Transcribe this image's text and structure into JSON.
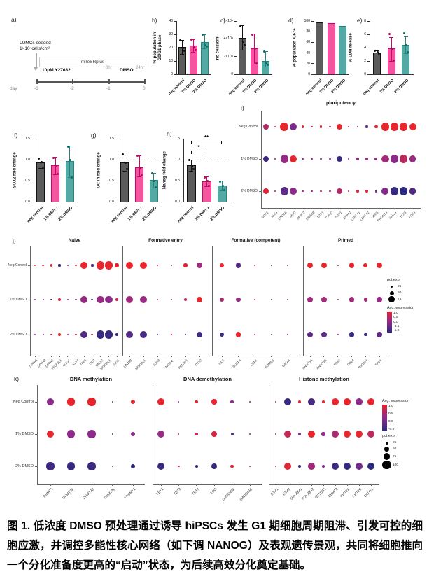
{
  "colors": {
    "neg_fill": "#5b5b5b",
    "neg_stroke": "#111111",
    "neg_point": "#111111",
    "dmso1_fill": "#f4559f",
    "dmso1_stroke": "#d4006e",
    "dmso1_point": "#b50d60",
    "dmso2_fill": "#54a9a4",
    "dmso2_stroke": "#23837d",
    "dmso2_point": "#0e6e68",
    "dot_high": "#e6252d",
    "dot_mid": "#8e2a8c",
    "dot_low": "#2b2a7e"
  },
  "panels": {
    "a": {
      "label": "a)",
      "seeded_line1": "LUMCs seeded",
      "seeded_line2": "1×10⁴cells/cm²",
      "media": "mTeSRplus",
      "treatment1": "10μM Y27632",
      "t0": "0hr",
      "treatment2": "DMSO",
      "t24": "24hr",
      "day_label": "day",
      "day_ticks": [
        "-3",
        "-2",
        "-1",
        "0"
      ]
    },
    "i": {
      "label": "i)"
    },
    "j": {
      "label": "j)"
    },
    "k": {
      "label": "k)"
    }
  },
  "chart_data": [
    {
      "id": "b",
      "panel_label": "b)",
      "type": "bar",
      "ylabel_lines": [
        "% population in",
        "G0/G1 phase"
      ],
      "ylim": [
        0,
        40
      ],
      "yticks": [
        0,
        10,
        20,
        30,
        40
      ],
      "ytick_labels": [
        "0",
        "10",
        "20",
        "30",
        "40"
      ],
      "categories": [
        "neg control",
        "1% DMSO",
        "2% DMSO"
      ],
      "values": [
        20.3,
        21.6,
        24.4
      ],
      "err_low": [
        15.5,
        17,
        19.5
      ],
      "err_high": [
        26,
        26.5,
        30
      ],
      "points": [
        [
          25.5,
          19.5,
          17.5
        ],
        [
          26,
          20.5,
          18
        ],
        [
          29.7,
          22,
          21
        ]
      ]
    },
    {
      "id": "c",
      "panel_label": "c)",
      "type": "bar",
      "ylabel_lines": [
        "no cells/cm²"
      ],
      "ylim": [
        0,
        60000
      ],
      "yticks": [
        0,
        20000,
        40000,
        60000
      ],
      "ytick_labels": [
        "0",
        "2×10⁴",
        "4×10⁴",
        "6×10⁴"
      ],
      "categories": [
        "neg control",
        "1% DMSO",
        "2% DMSO"
      ],
      "values": [
        41000,
        29000,
        15000
      ],
      "err_low": [
        28000,
        12000,
        9000
      ],
      "err_high": [
        55000,
        46000,
        26000
      ],
      "points": [
        [
          54000,
          36000,
          33000
        ],
        [
          45000,
          29000,
          12500
        ],
        [
          25500,
          12500,
          10500
        ]
      ]
    },
    {
      "id": "d",
      "panel_label": "d)",
      "type": "bar",
      "ylabel_lines": [
        "% population Ki67+"
      ],
      "ylim": [
        0,
        100
      ],
      "yticks": [
        0,
        20,
        40,
        60,
        80,
        100
      ],
      "ytick_labels": [
        "0",
        "20",
        "40",
        "60",
        "80",
        "100"
      ],
      "categories": [
        "neg control",
        "1% DMSO",
        "2% DMSO"
      ],
      "values": [
        97,
        96.5,
        91
      ]
    },
    {
      "id": "e",
      "panel_label": "e)",
      "type": "bar",
      "ylabel_lines": [
        "% LDH release"
      ],
      "ylim": [
        0,
        8
      ],
      "yticks": [
        0,
        2,
        4,
        6,
        8
      ],
      "ytick_labels": [
        "0",
        "2",
        "4",
        "6",
        "8"
      ],
      "categories": [
        "neg control",
        "1% DMSO",
        "2% DMSO"
      ],
      "values": [
        3.3,
        3.85,
        4.4
      ],
      "err_low": [
        3.0,
        2.0,
        3.2
      ],
      "err_high": [
        3.6,
        5.6,
        5.7
      ],
      "points": [
        [
          3.5,
          3.3,
          3.15
        ],
        [
          6.1,
          3.7,
          2.1
        ],
        [
          6.2,
          4.35,
          3.3
        ]
      ]
    },
    {
      "id": "f",
      "panel_label": "f)",
      "type": "bar",
      "ylabel_lines": [
        "SOX2 fold change"
      ],
      "ylim": [
        0,
        1.5
      ],
      "yticks": [
        0,
        0.5,
        1.0,
        1.5
      ],
      "ytick_labels": [
        "0.0",
        "0.5",
        "1.0",
        "1.5"
      ],
      "ref_line": 1.0,
      "categories": [
        "neg control",
        "1% DMSO",
        "2% DMSO"
      ],
      "values": [
        0.93,
        0.86,
        0.96
      ],
      "err_low": [
        0.8,
        0.65,
        0.58
      ],
      "err_high": [
        1.05,
        1.06,
        1.33
      ],
      "points": [
        [
          1.02,
          0.95,
          0.8
        ],
        [
          1.05,
          0.86,
          0.66
        ],
        [
          1.31,
          1.0,
          0.58
        ]
      ]
    },
    {
      "id": "g",
      "panel_label": "g)",
      "type": "bar",
      "ylabel_lines": [
        "OCT4 fold change"
      ],
      "ylim": [
        0,
        1.5
      ],
      "yticks": [
        0,
        0.5,
        1.0,
        1.5
      ],
      "ytick_labels": [
        "0.0",
        "0.5",
        "1.0",
        "1.5"
      ],
      "ref_line": 1.0,
      "categories": [
        "neg control",
        "1% DMSO",
        "2% DMSO"
      ],
      "values": [
        0.93,
        0.82,
        0.51
      ],
      "err_low": [
        0.74,
        0.6,
        0.33
      ],
      "err_high": [
        1.12,
        1.1,
        0.69
      ],
      "points": [
        [
          1.12,
          0.93,
          0.78
        ],
        [
          1.09,
          0.8,
          0.62
        ],
        [
          0.68,
          0.5,
          0.34
        ]
      ]
    },
    {
      "id": "h",
      "panel_label": "h)",
      "type": "bar",
      "ylabel_lines": [
        "Nanog fold change"
      ],
      "ylim": [
        0,
        1.5
      ],
      "yticks": [
        0,
        0.5,
        1.0,
        1.5
      ],
      "ytick_labels": [
        "0.0",
        "0.5",
        "1.0",
        "1.5"
      ],
      "ref_line": 1.0,
      "categories": [
        "neg control",
        "1% DMSO",
        "2% DMSO"
      ],
      "values": [
        0.87,
        0.49,
        0.38
      ],
      "err_low": [
        0.74,
        0.37,
        0.27
      ],
      "err_high": [
        1.0,
        0.6,
        0.5
      ],
      "points": [
        [
          1.0,
          0.85,
          0.77
        ],
        [
          0.57,
          0.5,
          0.37
        ],
        [
          0.48,
          0.38,
          0.28
        ]
      ],
      "significance": [
        {
          "pair": [
            0,
            1
          ],
          "y": 1.22,
          "label": "*"
        },
        {
          "pair": [
            0,
            2
          ],
          "y": 1.45,
          "label": "**"
        }
      ]
    },
    {
      "id": "i",
      "type": "dotplot",
      "title": "pluripotency",
      "rows": [
        "Neg Control",
        "1% DMSO",
        "2% DMSO"
      ],
      "genes": [
        "SOX2",
        "KLF4",
        "LIN28A",
        "MYC",
        "DPPA2",
        "ESRRB",
        "UTF1",
        "CHAD",
        "SPP1",
        "ZFP42",
        "LEFTY1",
        "LEFTY2",
        "GDF3",
        "PRDM14",
        "SALL4",
        "TCF3",
        "FGF4"
      ],
      "pct": [
        [
          60,
          8,
          85,
          70,
          18,
          8,
          15,
          8,
          55,
          8,
          12,
          15,
          28,
          80,
          85,
          80,
          70
        ],
        [
          60,
          8,
          80,
          70,
          12,
          8,
          12,
          8,
          55,
          8,
          15,
          18,
          22,
          75,
          80,
          80,
          65
        ],
        [
          60,
          8,
          80,
          70,
          12,
          8,
          12,
          8,
          55,
          8,
          15,
          18,
          15,
          70,
          80,
          80,
          65
        ]
      ],
      "avg": [
        [
          0.4,
          0.8,
          1,
          -0.2,
          1,
          0.5,
          1,
          0.3,
          1,
          0.5,
          -0.6,
          -0.4,
          1,
          1,
          1,
          1,
          1
        ],
        [
          -0.8,
          0,
          0.1,
          1,
          0,
          0,
          -0.2,
          0,
          -0.9,
          0,
          0.1,
          0.2,
          0.1,
          0.2,
          0,
          0.5,
          0.1
        ],
        [
          0.9,
          0.3,
          -0.5,
          0,
          0.2,
          0.2,
          0.3,
          0.2,
          0.4,
          0.3,
          0.9,
          0.9,
          -0.3,
          -0.1,
          -0.9,
          -1,
          -0.6
        ]
      ]
    },
    {
      "id": "j-naive",
      "type": "dotplot",
      "title": "Naive",
      "rows": [
        "Neg Control",
        "1% DMSO",
        "2% DMSO"
      ],
      "genes": [
        "DPPA5",
        "DPPA3",
        "DPPA2",
        "TFCP2L1",
        "KLF17",
        "KLF4",
        "TFE3",
        "ZIC2",
        "SALL2",
        "ST6GAL1",
        "FUT1"
      ],
      "pct": [
        [
          8,
          8,
          15,
          15,
          5,
          8,
          75,
          15,
          80,
          80,
          30
        ],
        [
          5,
          5,
          12,
          20,
          5,
          5,
          70,
          12,
          75,
          75,
          25
        ],
        [
          5,
          5,
          12,
          22,
          5,
          8,
          70,
          12,
          80,
          80,
          18
        ]
      ],
      "avg": [
        [
          1,
          1,
          1,
          -0.8,
          0,
          1,
          1,
          -0.7,
          1,
          1,
          1
        ],
        [
          0,
          0,
          -0.7,
          0.9,
          0,
          0,
          0.1,
          -0.8,
          0.1,
          0,
          0.8
        ],
        [
          0,
          0,
          0.9,
          1,
          0,
          0.9,
          -0.6,
          0.9,
          -0.9,
          -0.9,
          -1
        ]
      ]
    },
    {
      "id": "j-formative-entry",
      "type": "dotplot",
      "title": "Formative entry",
      "rows": [
        "Neg Control",
        "1% DMSO",
        "2% DMSO"
      ],
      "genes": [
        "LIN28B",
        "ST6GAL1",
        "SOX3",
        "NODAL",
        "POU3F1",
        "OTX2"
      ],
      "pct": [
        [
          75,
          75,
          12,
          5,
          30,
          55
        ],
        [
          70,
          70,
          10,
          5,
          28,
          60
        ],
        [
          70,
          70,
          8,
          12,
          10,
          55
        ]
      ],
      "avg": [
        [
          1,
          1,
          0.9,
          0,
          0.9,
          0.2
        ],
        [
          0.2,
          0.1,
          0.8,
          0,
          0.5,
          1
        ],
        [
          -0.6,
          -0.7,
          -0.5,
          0.9,
          -0.9,
          -0.8
        ]
      ]
    },
    {
      "id": "j-formative-competent",
      "type": "dotplot",
      "title": "Formative (competent)",
      "rows": [
        "Neg Control",
        "1% DMSO",
        "2% DMSO"
      ],
      "genes": [
        "ZIC2",
        "DUSP6",
        "CER1",
        "EOMES",
        "GATA6"
      ],
      "pct": [
        [
          45,
          50,
          5,
          4,
          4
        ],
        [
          40,
          45,
          6,
          4,
          4
        ],
        [
          40,
          50,
          8,
          4,
          4
        ]
      ],
      "avg": [
        [
          1,
          -0.6,
          0.5,
          0,
          0
        ],
        [
          0.3,
          0.1,
          1,
          0,
          0
        ],
        [
          -0.9,
          1,
          1,
          0,
          0
        ]
      ]
    },
    {
      "id": "j-primed",
      "type": "dotplot",
      "title": "Primed",
      "rows": [
        "Neg Control",
        "1% DMSO",
        "2% DMSO"
      ],
      "genes": [
        "DNMT3A",
        "DNMT3B",
        "FGF2",
        "CD24",
        "B3GAT1",
        "THY1"
      ],
      "pct": [
        [
          55,
          55,
          4,
          50,
          35,
          55
        ],
        [
          52,
          52,
          4,
          50,
          32,
          52
        ],
        [
          52,
          52,
          4,
          50,
          28,
          52
        ]
      ],
      "avg": [
        [
          1,
          1,
          0,
          1,
          1,
          1
        ],
        [
          0.2,
          0.2,
          0,
          0.2,
          0.3,
          0.1
        ],
        [
          -0.5,
          -0.5,
          0,
          -0.9,
          -0.8,
          -0.5
        ]
      ]
    },
    {
      "id": "k-dna-methylation",
      "type": "dotplot",
      "title": "DNA methylation",
      "rows": [
        "Neg Control",
        "1% DMSO",
        "2% DMSO"
      ],
      "genes": [
        "DNMT1",
        "DNMT3A",
        "DNMT3B",
        "DNMT3L",
        "TRDMT1"
      ],
      "pct": [
        [
          75,
          80,
          80,
          4,
          45
        ],
        [
          75,
          80,
          80,
          4,
          42
        ],
        [
          80,
          82,
          82,
          4,
          35
        ]
      ],
      "avg": [
        [
          0,
          1,
          1,
          0,
          1
        ],
        [
          1,
          0,
          0,
          0,
          0
        ],
        [
          -0.8,
          -0.9,
          -0.8,
          0,
          -1
        ]
      ]
    },
    {
      "id": "k-dna-demethylation",
      "type": "dotplot",
      "title": "DNA demethylation",
      "rows": [
        "Neg Control",
        "1% DMSO",
        "2% DMSO"
      ],
      "genes": [
        "TET1",
        "TET2",
        "TET3",
        "TDG",
        "GADD45A",
        "GADD45B"
      ],
      "pct": [
        [
          75,
          5,
          28,
          55,
          28,
          5
        ],
        [
          70,
          5,
          28,
          55,
          22,
          5
        ],
        [
          72,
          8,
          25,
          55,
          25,
          5
        ]
      ],
      "avg": [
        [
          1,
          0,
          0.9,
          1,
          0,
          0
        ],
        [
          0.1,
          0.5,
          0.6,
          0.8,
          -0.7,
          0
        ],
        [
          -0.9,
          0.9,
          -0.9,
          -0.9,
          0.9,
          0.3
        ]
      ]
    },
    {
      "id": "k-histone-methylation",
      "type": "dotplot",
      "title": "Histone methylation",
      "rows": [
        "Neg Control",
        "1% DMSO",
        "2% DMSO"
      ],
      "genes": [
        "EZH1",
        "EZH2",
        "SUV39H1",
        "SUV39H2",
        "SETDB1",
        "EHMT2",
        "KMT2A",
        "KMT2B",
        "DOT1L"
      ],
      "pct": [
        [
          5,
          75,
          22,
          70,
          28,
          75,
          72,
          70,
          72
        ],
        [
          5,
          72,
          25,
          70,
          30,
          75,
          72,
          70,
          72
        ],
        [
          6,
          72,
          20,
          68,
          28,
          78,
          75,
          70,
          72
        ]
      ],
      "avg": [
        [
          0,
          -0.9,
          1,
          -0.7,
          1,
          1,
          1,
          0,
          1
        ],
        [
          0,
          0.6,
          0,
          1,
          0,
          0.3,
          1,
          1,
          0.5
        ],
        [
          0.5,
          0.9,
          -0.8,
          0.2,
          -0.2,
          -0.8,
          -0.9,
          -0.3,
          -1
        ]
      ]
    }
  ],
  "legend_j": {
    "pct_title": "pct.exp",
    "pct_labels": [
      "25",
      "50",
      "75"
    ],
    "avg_title": "Avg. expression",
    "avg_labels": [
      "1.0",
      "0.5",
      "0.0",
      "-0.5",
      "-1.0"
    ]
  },
  "legend_k": {
    "avg_title": "Avg. expression",
    "avg_labels": [
      "1.0",
      "0.5",
      "0.0",
      "-0.5"
    ],
    "pct_title": "pct.exp",
    "pct_labels": [
      "25",
      "50",
      "75",
      "100"
    ]
  },
  "caption": "图 1. 低浓度 DMSO 预处理通过诱导 hiPSCs 发生 G1 期细胞周期阻滞、引发可控的细胞应激，并调控多能性核心网络（如下调 NANOG）及表观遗传景观，共同将细胞推向一个分化准备度更高的“启动”状态，为后续高效分化奠定基础。"
}
